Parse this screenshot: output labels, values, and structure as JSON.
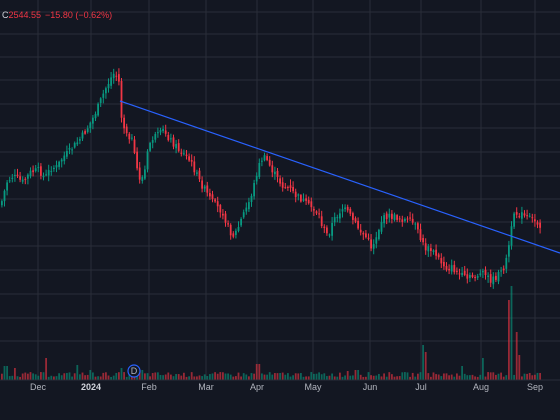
{
  "legend": {
    "ohlc_key": "C",
    "close": "2544.55",
    "change": "−15.80 (−0.62%)"
  },
  "colors": {
    "background": "#131722",
    "grid": "#2a2e39",
    "up": "#089981",
    "down": "#f23645",
    "trendline": "#2962ff",
    "axis_text": "#b2b5be"
  },
  "dividend_marker": {
    "letter": "D",
    "icon": "dividend-icon"
  },
  "chart_data": {
    "type": "candlestick",
    "x_axis": {
      "ticks": [
        "Dec",
        "2024",
        "Feb",
        "Mar",
        "Apr",
        "May",
        "Jun",
        "Jul",
        "Aug",
        "Sep"
      ],
      "bold_ticks": [
        "2024"
      ]
    },
    "y_axis": {
      "visible": false
    },
    "grid": true,
    "volume_pane": true,
    "trendline": {
      "color": "#2962ff",
      "direction": "descending"
    },
    "series": [
      {
        "name": "",
        "close": 2544.55,
        "change": -15.8,
        "change_pct": -0.62
      }
    ]
  }
}
